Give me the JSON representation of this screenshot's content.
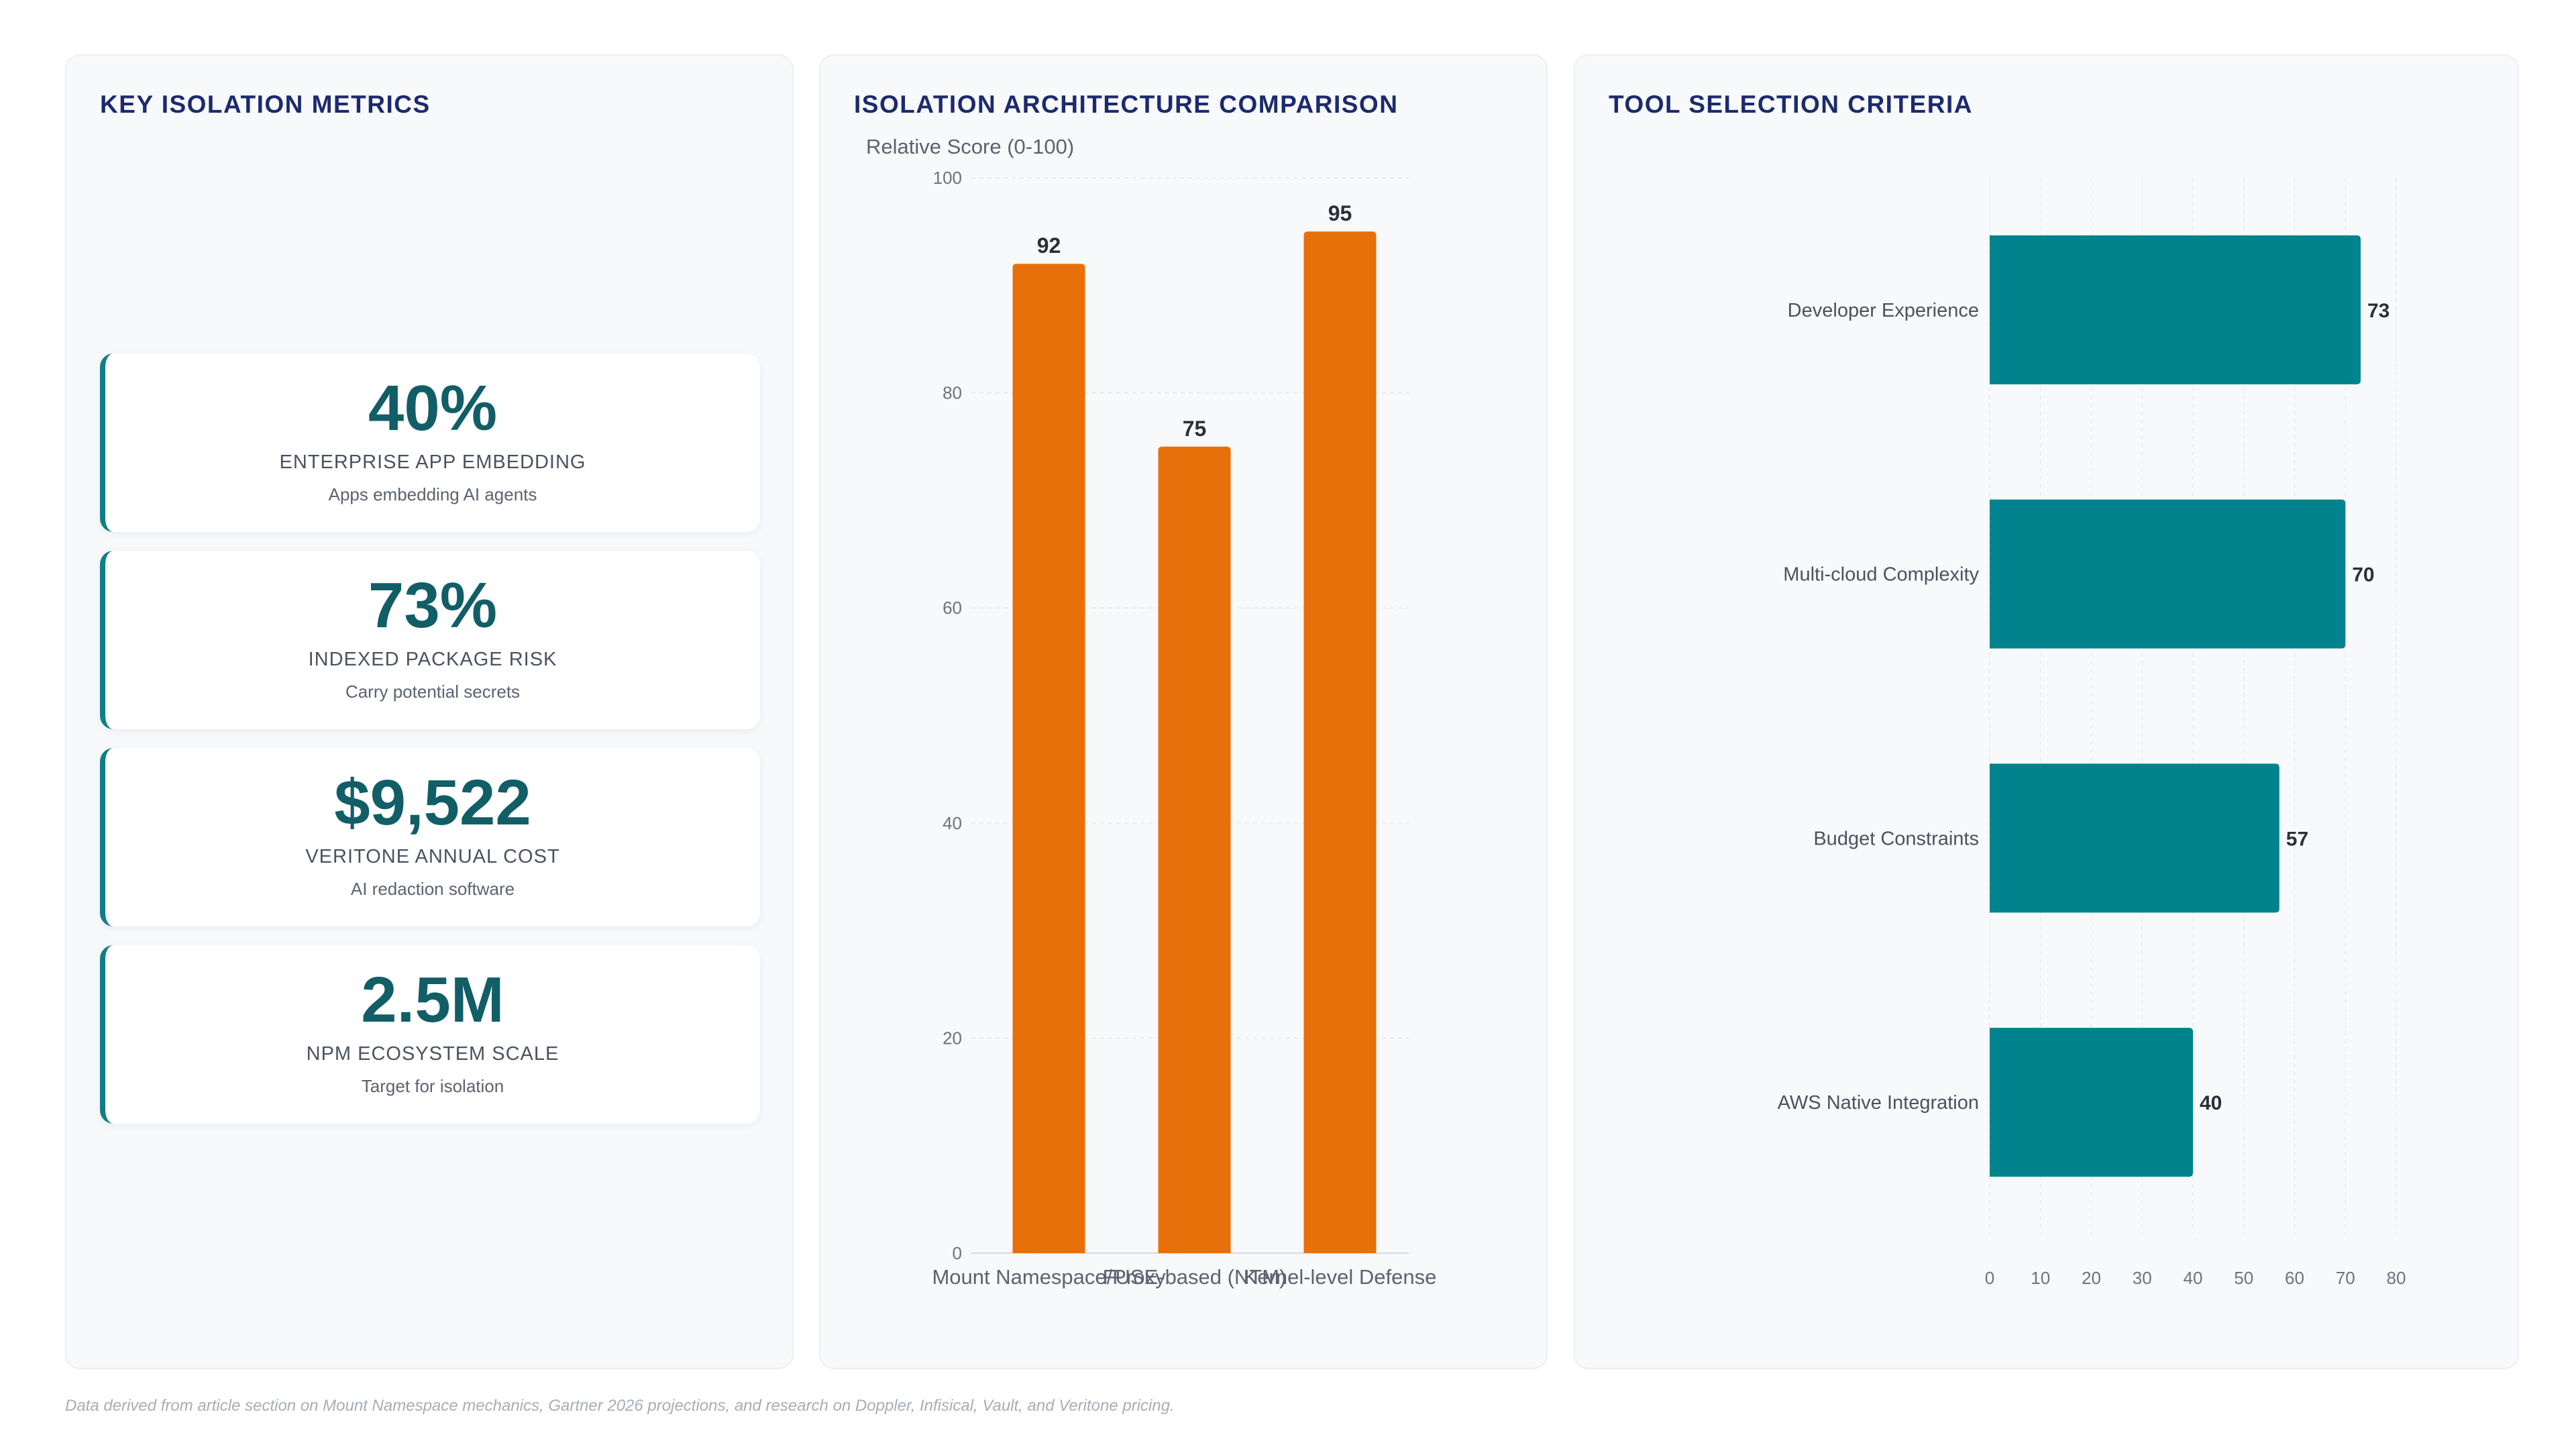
{
  "metrics_panel": {
    "title": "KEY ISOLATION METRICS",
    "cards": [
      {
        "value": "40%",
        "label": "ENTERPRISE APP EMBEDDING",
        "sublabel": "Apps embedding AI agents"
      },
      {
        "value": "73%",
        "label": "INDEXED PACKAGE RISK",
        "sublabel": "Carry potential secrets"
      },
      {
        "value": "$9,522",
        "label": "VERITONE ANNUAL COST",
        "sublabel": "AI redaction software"
      },
      {
        "value": "2.5M",
        "label": "NPM ECOSYSTEM SCALE",
        "sublabel": "Target for isolation"
      }
    ]
  },
  "architecture_panel": {
    "title": "ISOLATION ARCHITECTURE COMPARISON"
  },
  "criteria_panel": {
    "title": "TOOL SELECTION CRITERIA"
  },
  "colors": {
    "accent_teal": "#0f7f86",
    "bar_orange": "#e8700a",
    "bar_teal": "#00838c",
    "title_navy": "#1c2a6e"
  },
  "chart_data": [
    {
      "type": "bar",
      "orientation": "vertical",
      "title": "ISOLATION ARCHITECTURE COMPARISON",
      "ylabel": "Relative Score (0-100)",
      "categories": [
        "Mount Namespace/Proxy",
        "FUSE-based (NTM)",
        "Kernel-level Defense"
      ],
      "values": [
        92,
        75,
        95
      ],
      "ylim": [
        0,
        100
      ],
      "yticks": [
        0,
        20,
        40,
        60,
        80,
        100
      ],
      "grid": true,
      "data_labels": true
    },
    {
      "type": "bar",
      "orientation": "horizontal",
      "title": "TOOL SELECTION CRITERIA",
      "categories": [
        "Developer Experience",
        "Multi-cloud Complexity",
        "Budget Constraints",
        "AWS Native Integration"
      ],
      "values": [
        73,
        70,
        57,
        40
      ],
      "xlim": [
        0,
        80
      ],
      "xticks": [
        0,
        10,
        20,
        30,
        40,
        50,
        60,
        70,
        80
      ],
      "grid": true,
      "data_labels": true
    }
  ],
  "footer": {
    "note": "Data derived from article section on Mount Namespace mechanics, Gartner 2026 projections, and research on Doppler, Infisical, Vault, and Veritone pricing."
  }
}
